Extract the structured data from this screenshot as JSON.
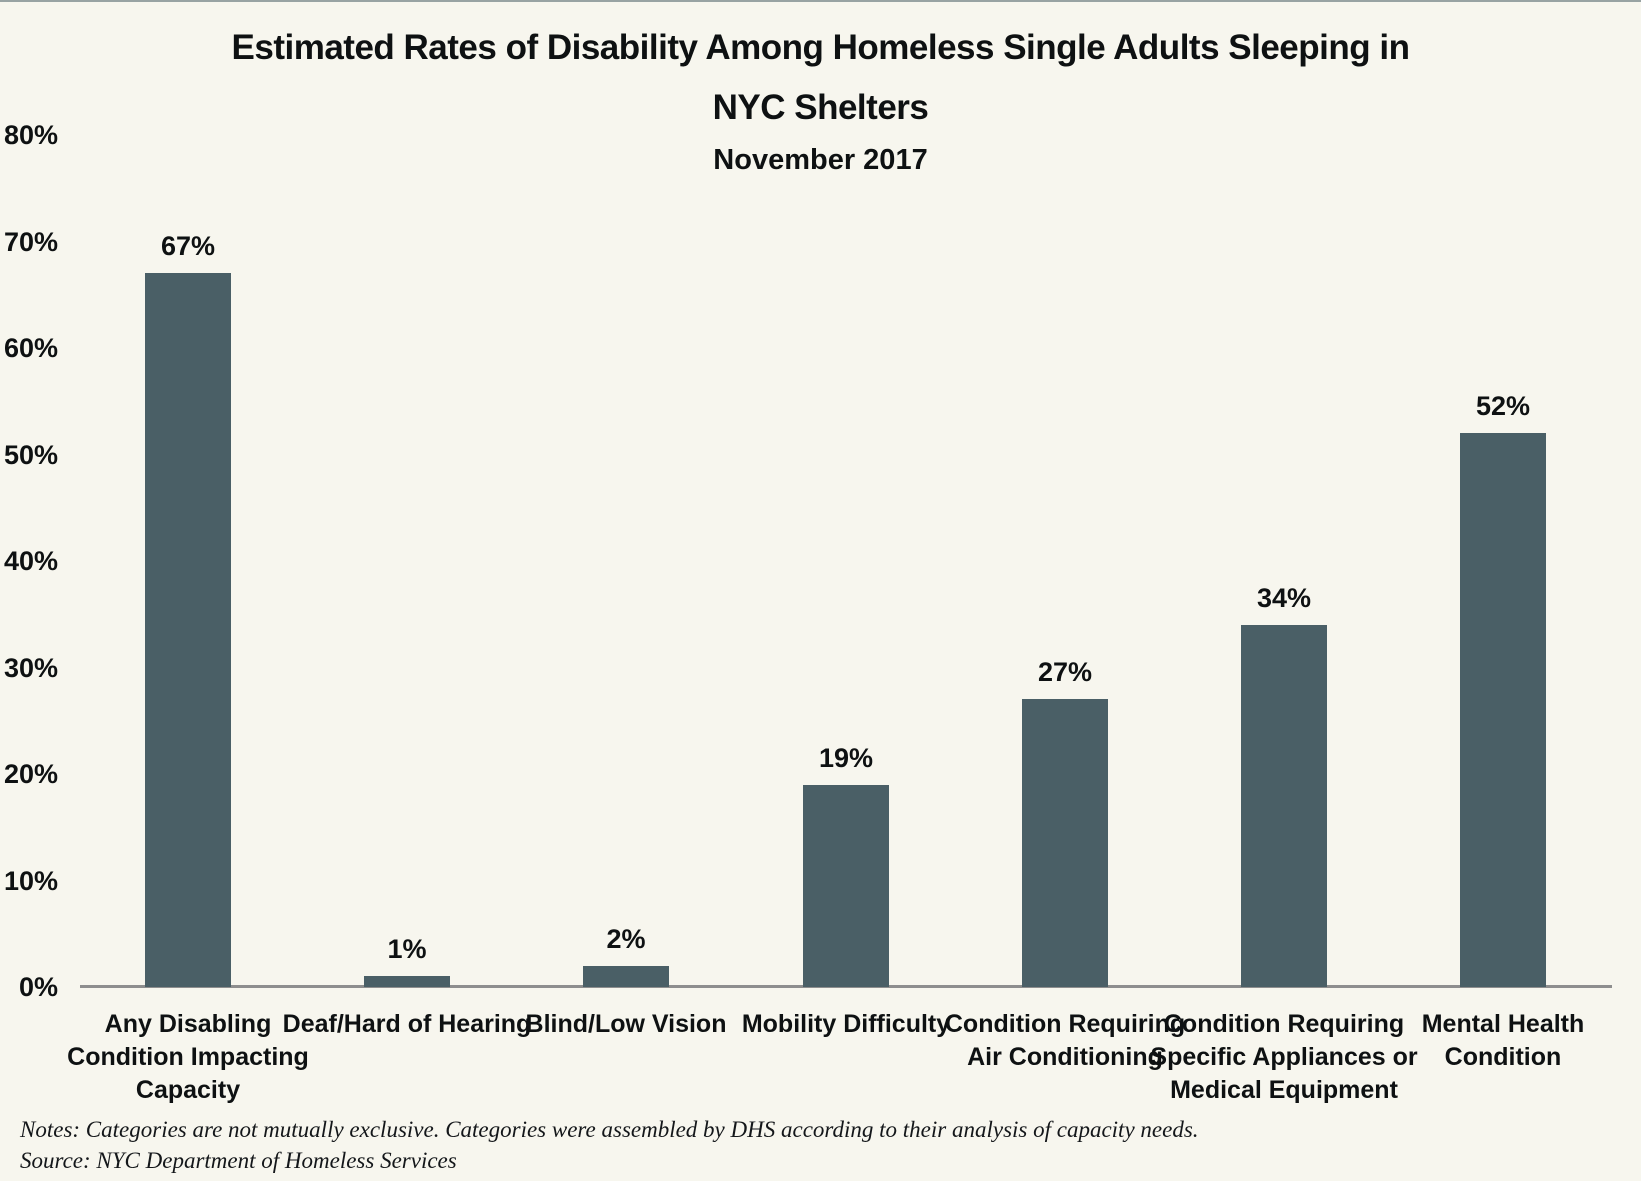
{
  "page": {
    "background_color": "#f7f6ee",
    "bar_color": "#4a5f66",
    "axis_line_color": "#8e8e8e",
    "text_color": "#0e1112"
  },
  "chart_data": {
    "type": "bar",
    "title": "Estimated Rates of Disability Among Homeless Single Adults Sleeping in NYC Shelters",
    "title_lines": {
      "line1": "Estimated Rates of Disability Among Homeless Single Adults Sleeping in",
      "line2": "NYC Shelters"
    },
    "subtitle": "November 2017",
    "categories": [
      "Any Disabling Condition Impacting Capacity",
      "Deaf/Hard of Hearing",
      "Blind/Low Vision",
      "Mobility Difficulty",
      "Condition Requiring Air Conditioning",
      "Condition Requiring Specific Appliances or Medical Equipment",
      "Mental Health Condition"
    ],
    "category_display_lines": [
      [
        "Any Disabling",
        "Condition Impacting",
        "Capacity"
      ],
      [
        "Deaf/Hard of Hearing"
      ],
      [
        "Blind/Low Vision"
      ],
      [
        "Mobility Difficulty"
      ],
      [
        "Condition Requiring",
        "Air Conditioning"
      ],
      [
        "Condition Requiring",
        "Specific Appliances or",
        "Medical Equipment"
      ],
      [
        "Mental Health",
        "Condition"
      ]
    ],
    "values": [
      67,
      1,
      2,
      19,
      27,
      34,
      52
    ],
    "value_labels": [
      "67%",
      "1%",
      "2%",
      "19%",
      "27%",
      "34%",
      "52%"
    ],
    "xlabel": "",
    "ylabel": "",
    "ylim": [
      0,
      80
    ],
    "ytick_step": 10,
    "ytick_labels": [
      "0%",
      "10%",
      "20%",
      "30%",
      "40%",
      "50%",
      "60%",
      "70%",
      "80%"
    ],
    "grid": false,
    "legend": false,
    "notes": "Notes: Categories are not mutually exclusive. Categories were assembled by DHS according to their analysis of capacity needs.",
    "source": "Source: NYC Department of Homeless Services"
  }
}
